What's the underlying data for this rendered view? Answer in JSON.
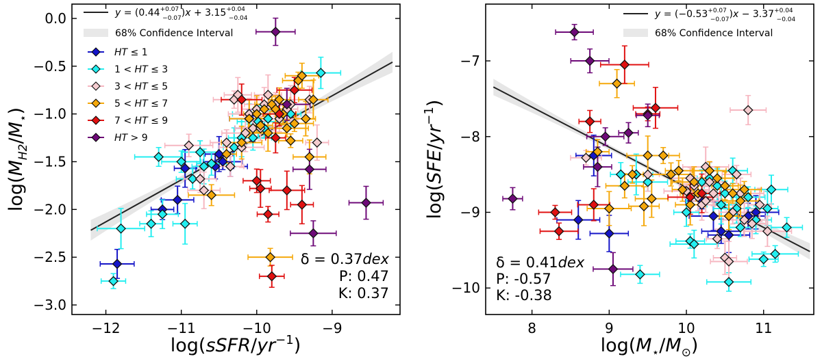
{
  "chart_data": [
    {
      "type": "scatter",
      "panel": "left",
      "xlabel": "log(sSFR/yr⁻¹)",
      "ylabel": "log(M_H2/M_⋆)",
      "xlim": [
        -12.45,
        -8.1
      ],
      "ylim": [
        -3.1,
        0.15
      ],
      "xticks": [
        -12,
        -11,
        -10,
        -9
      ],
      "xtick_labels": [
        "−12",
        "−11",
        "−10",
        "−9"
      ],
      "yticks": [
        0.0,
        -0.5,
        -1.0,
        -1.5,
        -2.0,
        -2.5,
        -3.0
      ],
      "ytick_labels": [
        "0.0",
        "−0.5",
        "−1.0",
        "−1.5",
        "−2.0",
        "−2.5",
        "−3.0"
      ],
      "fit": {
        "slope": 0.44,
        "intercept": 3.15,
        "x_range": [
          -12.2,
          -8.2
        ],
        "band_width": 0.08
      },
      "legend": {
        "position": "upper-left",
        "fit_label": "y = (0.44⁺⁰˙⁰⁷₋₀.₀₇)x + 3.15⁺⁰˙⁰⁴₋₀.₀₄",
        "ci_label": "68% Confidence Interval",
        "groups": [
          "HT ≤ 1",
          "1 < HT ≤ 3",
          "3 < HT ≤ 5",
          "5 < HT ≤ 7",
          "7 < HT ≤ 9",
          "HT > 9"
        ]
      },
      "stats": [
        "δ = 0.37dex",
        "P: 0.47",
        "K: 0.37"
      ],
      "series": [
        {
          "name": "HT ≤ 1",
          "points": [
            [
              -11.85,
              -2.57
            ],
            [
              -11.25,
              -2.0
            ],
            [
              -11.05,
              -1.9
            ],
            [
              -10.95,
              -1.57
            ],
            [
              -10.55,
              -1.55
            ],
            [
              -10.5,
              -1.42
            ],
            [
              -10.45,
              -1.5
            ],
            [
              -10.35,
              -1.55
            ],
            [
              -10.1,
              -1.05
            ],
            [
              -10.05,
              -1.15
            ]
          ]
        },
        {
          "name": "1 < HT ≤ 3",
          "points": [
            [
              -11.9,
              -2.75
            ],
            [
              -11.8,
              -2.2
            ],
            [
              -11.4,
              -2.15
            ],
            [
              -11.3,
              -1.45
            ],
            [
              -11.25,
              -2.05
            ],
            [
              -11.0,
              -1.5
            ],
            [
              -10.95,
              -2.15
            ],
            [
              -10.85,
              -1.68
            ],
            [
              -10.75,
              -1.4
            ],
            [
              -10.7,
              -1.55
            ],
            [
              -10.6,
              -1.52
            ],
            [
              -10.3,
              -1.35
            ],
            [
              -10.2,
              -1.25
            ],
            [
              -10.1,
              -1.0
            ],
            [
              -10.05,
              -1.25
            ],
            [
              -9.98,
              -1.08
            ],
            [
              -9.9,
              -1.15
            ],
            [
              -9.85,
              -1.05
            ],
            [
              -9.55,
              -1.0
            ],
            [
              -9.15,
              -0.57
            ]
          ]
        },
        {
          "name": "3 < HT ≤ 5",
          "points": [
            [
              -10.9,
              -1.33
            ],
            [
              -10.75,
              -1.68
            ],
            [
              -10.7,
              -1.8
            ],
            [
              -10.4,
              -1.3
            ],
            [
              -10.35,
              -1.55
            ],
            [
              -10.3,
              -0.85
            ],
            [
              -10.25,
              -0.8
            ],
            [
              -10.2,
              -1.35
            ],
            [
              -10.15,
              -1.2
            ],
            [
              -10.1,
              -1.0
            ],
            [
              -10.05,
              -1.15
            ],
            [
              -10.0,
              -0.95
            ],
            [
              -9.95,
              -1.15
            ],
            [
              -9.9,
              -0.9
            ],
            [
              -9.85,
              -0.8
            ],
            [
              -9.75,
              -0.9
            ],
            [
              -9.7,
              -1.05
            ],
            [
              -9.6,
              -0.95
            ],
            [
              -9.55,
              -0.9
            ],
            [
              -9.3,
              -0.85
            ],
            [
              -9.2,
              -1.3
            ]
          ]
        },
        {
          "name": "5 < HT ≤ 7",
          "points": [
            [
              -10.6,
              -1.85
            ],
            [
              -10.4,
              -1.42
            ],
            [
              -10.2,
              -1.3
            ],
            [
              -10.1,
              -1.05
            ],
            [
              -10.0,
              -1.0
            ],
            [
              -9.95,
              -1.12
            ],
            [
              -9.9,
              -0.95
            ],
            [
              -9.85,
              -1.2
            ],
            [
              -9.82,
              -2.5
            ],
            [
              -9.8,
              -0.9
            ],
            [
              -9.75,
              -0.95
            ],
            [
              -9.7,
              -0.85
            ],
            [
              -9.65,
              -1.0
            ],
            [
              -9.6,
              -1.15
            ],
            [
              -9.55,
              -1.28
            ],
            [
              -9.5,
              -1.1
            ],
            [
              -9.45,
              -0.65
            ],
            [
              -9.4,
              -0.6
            ],
            [
              -9.35,
              -1.05
            ],
            [
              -9.3,
              -1.45
            ],
            [
              -9.25,
              -0.85
            ]
          ]
        },
        {
          "name": "7 < HT ≤ 9",
          "points": [
            [
              -10.2,
              -0.85
            ],
            [
              -10.0,
              -1.7
            ],
            [
              -9.95,
              -1.78
            ],
            [
              -9.85,
              -2.05
            ],
            [
              -9.8,
              -2.7
            ],
            [
              -9.75,
              -1.25
            ],
            [
              -9.7,
              -1.0
            ],
            [
              -9.6,
              -1.8
            ],
            [
              -9.5,
              -0.75
            ],
            [
              -9.4,
              -1.95
            ]
          ]
        },
        {
          "name": "HT > 9",
          "points": [
            [
              -9.75,
              -0.14
            ],
            [
              -9.6,
              -0.9
            ],
            [
              -9.3,
              -1.58
            ],
            [
              -9.25,
              -2.25
            ],
            [
              -8.55,
              -1.93
            ]
          ]
        }
      ]
    },
    {
      "type": "scatter",
      "panel": "right",
      "xlabel": "log(M_⋆/M_⊙)",
      "ylabel": "log(SFE/yr⁻¹)",
      "xlim": [
        7.4,
        11.65
      ],
      "ylim": [
        -10.35,
        -6.25
      ],
      "xticks": [
        8,
        9,
        10,
        11
      ],
      "xtick_labels": [
        "8",
        "9",
        "10",
        "11"
      ],
      "yticks": [
        -7,
        -8,
        -9,
        -10
      ],
      "ytick_labels": [
        "−7",
        "−8",
        "−9",
        "−10"
      ],
      "fit": {
        "slope": -0.53,
        "intercept": -3.37,
        "x_range": [
          7.5,
          11.6
        ],
        "band_width": 0.08
      },
      "legend": {
        "position": "upper-right",
        "fit_label": "y = (−0.53⁺⁰˙⁰⁷₋₀.₀₇)x − 3.37⁺⁰˙⁰⁴₋₀.₀₄",
        "ci_label": "68% Confidence Interval"
      },
      "stats": [
        "δ = 0.41dex",
        "P: -0.57",
        "K: -0.38"
      ],
      "series": [
        {
          "name": "HT ≤ 1",
          "points": [
            [
              8.6,
              -9.1
            ],
            [
              8.8,
              -8.25
            ],
            [
              9.0,
              -9.28
            ],
            [
              10.2,
              -8.85
            ],
            [
              10.35,
              -9.05
            ],
            [
              10.45,
              -9.25
            ],
            [
              10.55,
              -9.3
            ],
            [
              10.8,
              -9.05
            ],
            [
              10.9,
              -9.0
            ]
          ]
        },
        {
          "name": "1 < HT ≤ 3",
          "points": [
            [
              9.15,
              -8.5
            ],
            [
              9.35,
              -8.5
            ],
            [
              9.4,
              -9.82
            ],
            [
              9.5,
              -8.6
            ],
            [
              10.0,
              -9.0
            ],
            [
              10.05,
              -9.38
            ],
            [
              10.1,
              -9.42
            ],
            [
              10.2,
              -8.6
            ],
            [
              10.3,
              -8.55
            ],
            [
              10.4,
              -8.65
            ],
            [
              10.45,
              -8.9
            ],
            [
              10.5,
              -8.75
            ],
            [
              10.55,
              -9.92
            ],
            [
              10.6,
              -8.45
            ],
            [
              10.65,
              -8.95
            ],
            [
              10.7,
              -9.2
            ],
            [
              10.8,
              -8.8
            ],
            [
              10.9,
              -9.1
            ],
            [
              11.0,
              -9.62
            ],
            [
              11.05,
              -8.95
            ],
            [
              11.1,
              -8.7
            ],
            [
              11.15,
              -9.55
            ],
            [
              11.3,
              -9.2
            ]
          ]
        },
        {
          "name": "3 < HT ≤ 5",
          "points": [
            [
              8.7,
              -8.28
            ],
            [
              9.5,
              -8.5
            ],
            [
              10.0,
              -8.72
            ],
            [
              10.05,
              -8.55
            ],
            [
              10.1,
              -8.65
            ],
            [
              10.15,
              -8.8
            ],
            [
              10.2,
              -8.9
            ],
            [
              10.25,
              -8.4
            ],
            [
              10.3,
              -8.6
            ],
            [
              10.35,
              -8.75
            ],
            [
              10.4,
              -9.35
            ],
            [
              10.5,
              -9.6
            ],
            [
              10.55,
              -9.65
            ],
            [
              10.6,
              -9.0
            ],
            [
              10.65,
              -8.5
            ],
            [
              10.7,
              -8.75
            ],
            [
              10.75,
              -9.1
            ],
            [
              10.85,
              -9.15
            ],
            [
              10.95,
              -8.9
            ],
            [
              11.05,
              -9.25
            ],
            [
              10.25,
              -8.85
            ],
            [
              10.8,
              -7.65
            ]
          ]
        },
        {
          "name": "5 < HT ≤ 7",
          "points": [
            [
              8.85,
              -8.2
            ],
            [
              9.0,
              -8.95
            ],
            [
              9.1,
              -7.3
            ],
            [
              9.2,
              -8.65
            ],
            [
              9.3,
              -8.5
            ],
            [
              9.45,
              -8.92
            ],
            [
              9.5,
              -8.25
            ],
            [
              9.55,
              -8.82
            ],
            [
              9.7,
              -8.25
            ],
            [
              9.8,
              -8.5
            ],
            [
              9.9,
              -8.45
            ],
            [
              9.95,
              -8.7
            ],
            [
              10.05,
              -8.9
            ],
            [
              10.1,
              -8.6
            ],
            [
              10.15,
              -8.75
            ],
            [
              10.3,
              -8.45
            ],
            [
              10.4,
              -8.55
            ],
            [
              10.5,
              -8.65
            ],
            [
              10.6,
              -8.75
            ],
            [
              10.7,
              -8.85
            ],
            [
              10.75,
              -8.7
            ],
            [
              10.55,
              -9.05
            ]
          ]
        },
        {
          "name": "7 < HT ≤ 9",
          "points": [
            [
              8.3,
              -9.0
            ],
            [
              8.35,
              -9.25
            ],
            [
              8.75,
              -7.8
            ],
            [
              8.8,
              -8.9
            ],
            [
              9.2,
              -7.05
            ],
            [
              9.5,
              -7.7
            ],
            [
              9.6,
              -7.62
            ],
            [
              10.05,
              -8.8
            ],
            [
              10.2,
              -8.75
            ]
          ]
        },
        {
          "name": "HT > 9",
          "points": [
            [
              7.75,
              -8.82
            ],
            [
              8.55,
              -6.62
            ],
            [
              8.75,
              -7.0
            ],
            [
              8.85,
              -8.4
            ],
            [
              8.95,
              -8.0
            ],
            [
              9.05,
              -9.75
            ],
            [
              9.25,
              -7.95
            ],
            [
              9.5,
              -7.72
            ]
          ]
        }
      ]
    }
  ],
  "colors": {
    "HT ≤ 1": "#1515c8",
    "1 < HT ≤ 3": "#22eef0",
    "3 < HT ≤ 5": "#f4cccf",
    "5 < HT ≤ 7": "#f5a80a",
    "7 < HT ≤ 9": "#e01111",
    "HT > 9": "#6e0a78",
    "err_3_5": "#f6b6c0"
  }
}
